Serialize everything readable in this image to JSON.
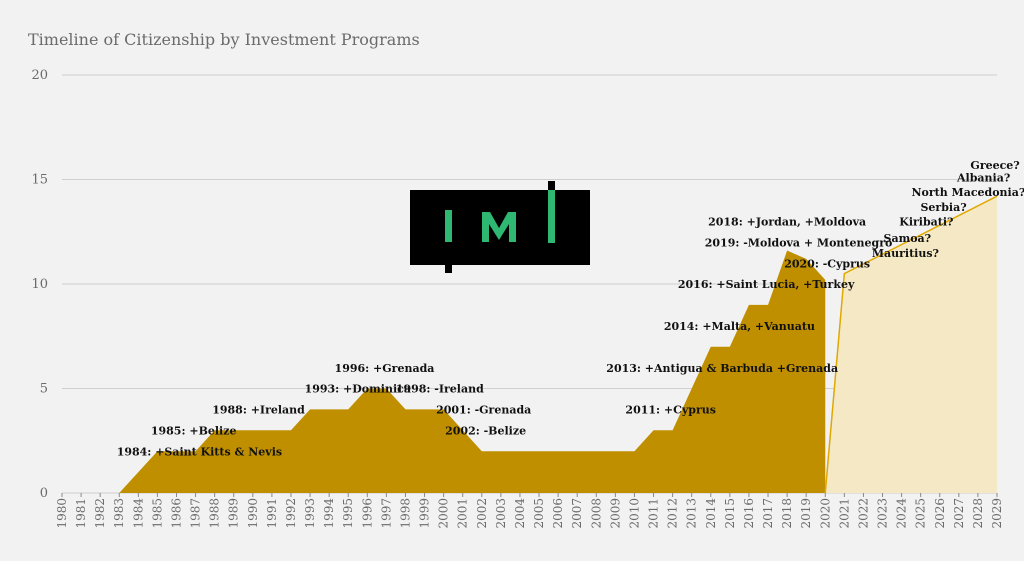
{
  "chart_data": {
    "type": "area",
    "title": "Timeline of Citizenship by Investment Programs",
    "xlabel": "",
    "ylabel": "",
    "ylim": [
      0,
      20
    ],
    "yticks": [
      0,
      5,
      10,
      15,
      20
    ],
    "grid": "horizontal",
    "legend": "none",
    "series": [
      {
        "style": "solid",
        "color": "#bf8f00",
        "x": [
          1980,
          1981,
          1982,
          1983,
          1984,
          1985,
          1986,
          1987,
          1988,
          1989,
          1990,
          1991,
          1992,
          1993,
          1994,
          1995,
          1996,
          1997,
          1998,
          1999,
          2000,
          2001,
          2002,
          2003,
          2004,
          2005,
          2006,
          2007,
          2008,
          2009,
          2010,
          2011,
          2012,
          2013,
          2014,
          2015,
          2016,
          2017,
          2018,
          2019,
          2020
        ],
        "values": [
          0,
          0,
          0,
          0,
          1,
          2,
          2,
          2,
          3,
          3,
          3,
          3,
          3,
          4,
          4,
          4,
          5,
          5,
          4,
          4,
          4,
          3,
          2,
          2,
          2,
          2,
          2,
          2,
          2,
          2,
          2,
          3,
          3,
          5,
          7,
          7,
          9,
          9,
          11.6,
          11.2,
          10.2
        ]
      },
      {
        "style": "projected",
        "color": "#f5e9c5",
        "line_color": "#e0a800",
        "x": [
          2020,
          2021,
          2029
        ],
        "values": [
          0,
          10.5,
          14.2
        ]
      }
    ],
    "x_ticks": [
      "1980",
      "1981",
      "1982",
      "1983",
      "1984",
      "1985",
      "1986",
      "1987",
      "1988",
      "1989",
      "1990",
      "1991",
      "1992",
      "1993",
      "1994",
      "1995",
      "1996",
      "1997",
      "1998",
      "1999",
      "2000",
      "2001",
      "2002",
      "2003",
      "2004",
      "2005",
      "2006",
      "2007",
      "2008",
      "2009",
      "2010",
      "2011",
      "2012",
      "2013",
      "2014",
      "2015",
      "2016",
      "2017",
      "2018",
      "2019",
      "2020",
      "2021",
      "2022",
      "2023",
      "2024",
      "2025",
      "2026",
      "2027",
      "2028",
      "2029"
    ],
    "annotations": [
      {
        "text": "1984: +Saint Kitts & Nevis",
        "x": 1987.2,
        "y": 1.8
      },
      {
        "text": "1985: +Belize",
        "x": 1986.9,
        "y": 2.8
      },
      {
        "text": "1988: +Ireland",
        "x": 1990.3,
        "y": 3.8
      },
      {
        "text": "1993: +Dominica",
        "x": 1995.5,
        "y": 4.8
      },
      {
        "text": "1996: +Grenada",
        "x": 1996.9,
        "y": 5.8
      },
      {
        "text": "1998: -Ireland",
        "x": 1999.8,
        "y": 4.8
      },
      {
        "text": "2001: -Grenada",
        "x": 2002.1,
        "y": 3.8
      },
      {
        "text": "2002: -Belize",
        "x": 2002.2,
        "y": 2.8
      },
      {
        "text": "2011: +Cyprus",
        "x": 2011.9,
        "y": 3.8
      },
      {
        "text": "2013: +Antigua & Barbuda +Grenada",
        "x": 2014.6,
        "y": 5.8
      },
      {
        "text": "2014: +Malta, +Vanuatu",
        "x": 2015.5,
        "y": 7.8
      },
      {
        "text": "2016: +Saint Lucia, +Turkey",
        "x": 2016.9,
        "y": 9.8
      },
      {
        "text": "2018: +Jordan, +Moldova",
        "x": 2018.0,
        "y": 12.8
      },
      {
        "text": "2019: -Moldova + Montenegro",
        "x": 2018.6,
        "y": 11.8
      },
      {
        "text": "2020: -Cyprus",
        "x": 2020.1,
        "y": 10.8
      },
      {
        "text": "Mauritius?",
        "x": 2024.2,
        "y": 11.3
      },
      {
        "text": "Samoa?",
        "x": 2024.3,
        "y": 12.0
      },
      {
        "text": "Kiribati?",
        "x": 2025.3,
        "y": 12.8
      },
      {
        "text": "Serbia?",
        "x": 2026.2,
        "y": 13.5
      },
      {
        "text": "North Macedonia?",
        "x": 2027.5,
        "y": 14.2
      },
      {
        "text": "Albania?",
        "x": 2028.3,
        "y": 14.9
      },
      {
        "text": "Greece?",
        "x": 2028.9,
        "y": 15.5
      }
    ]
  },
  "logo": {
    "text": "IMI",
    "colors": {
      "background": "#000000",
      "mark": "#2eb872"
    }
  }
}
